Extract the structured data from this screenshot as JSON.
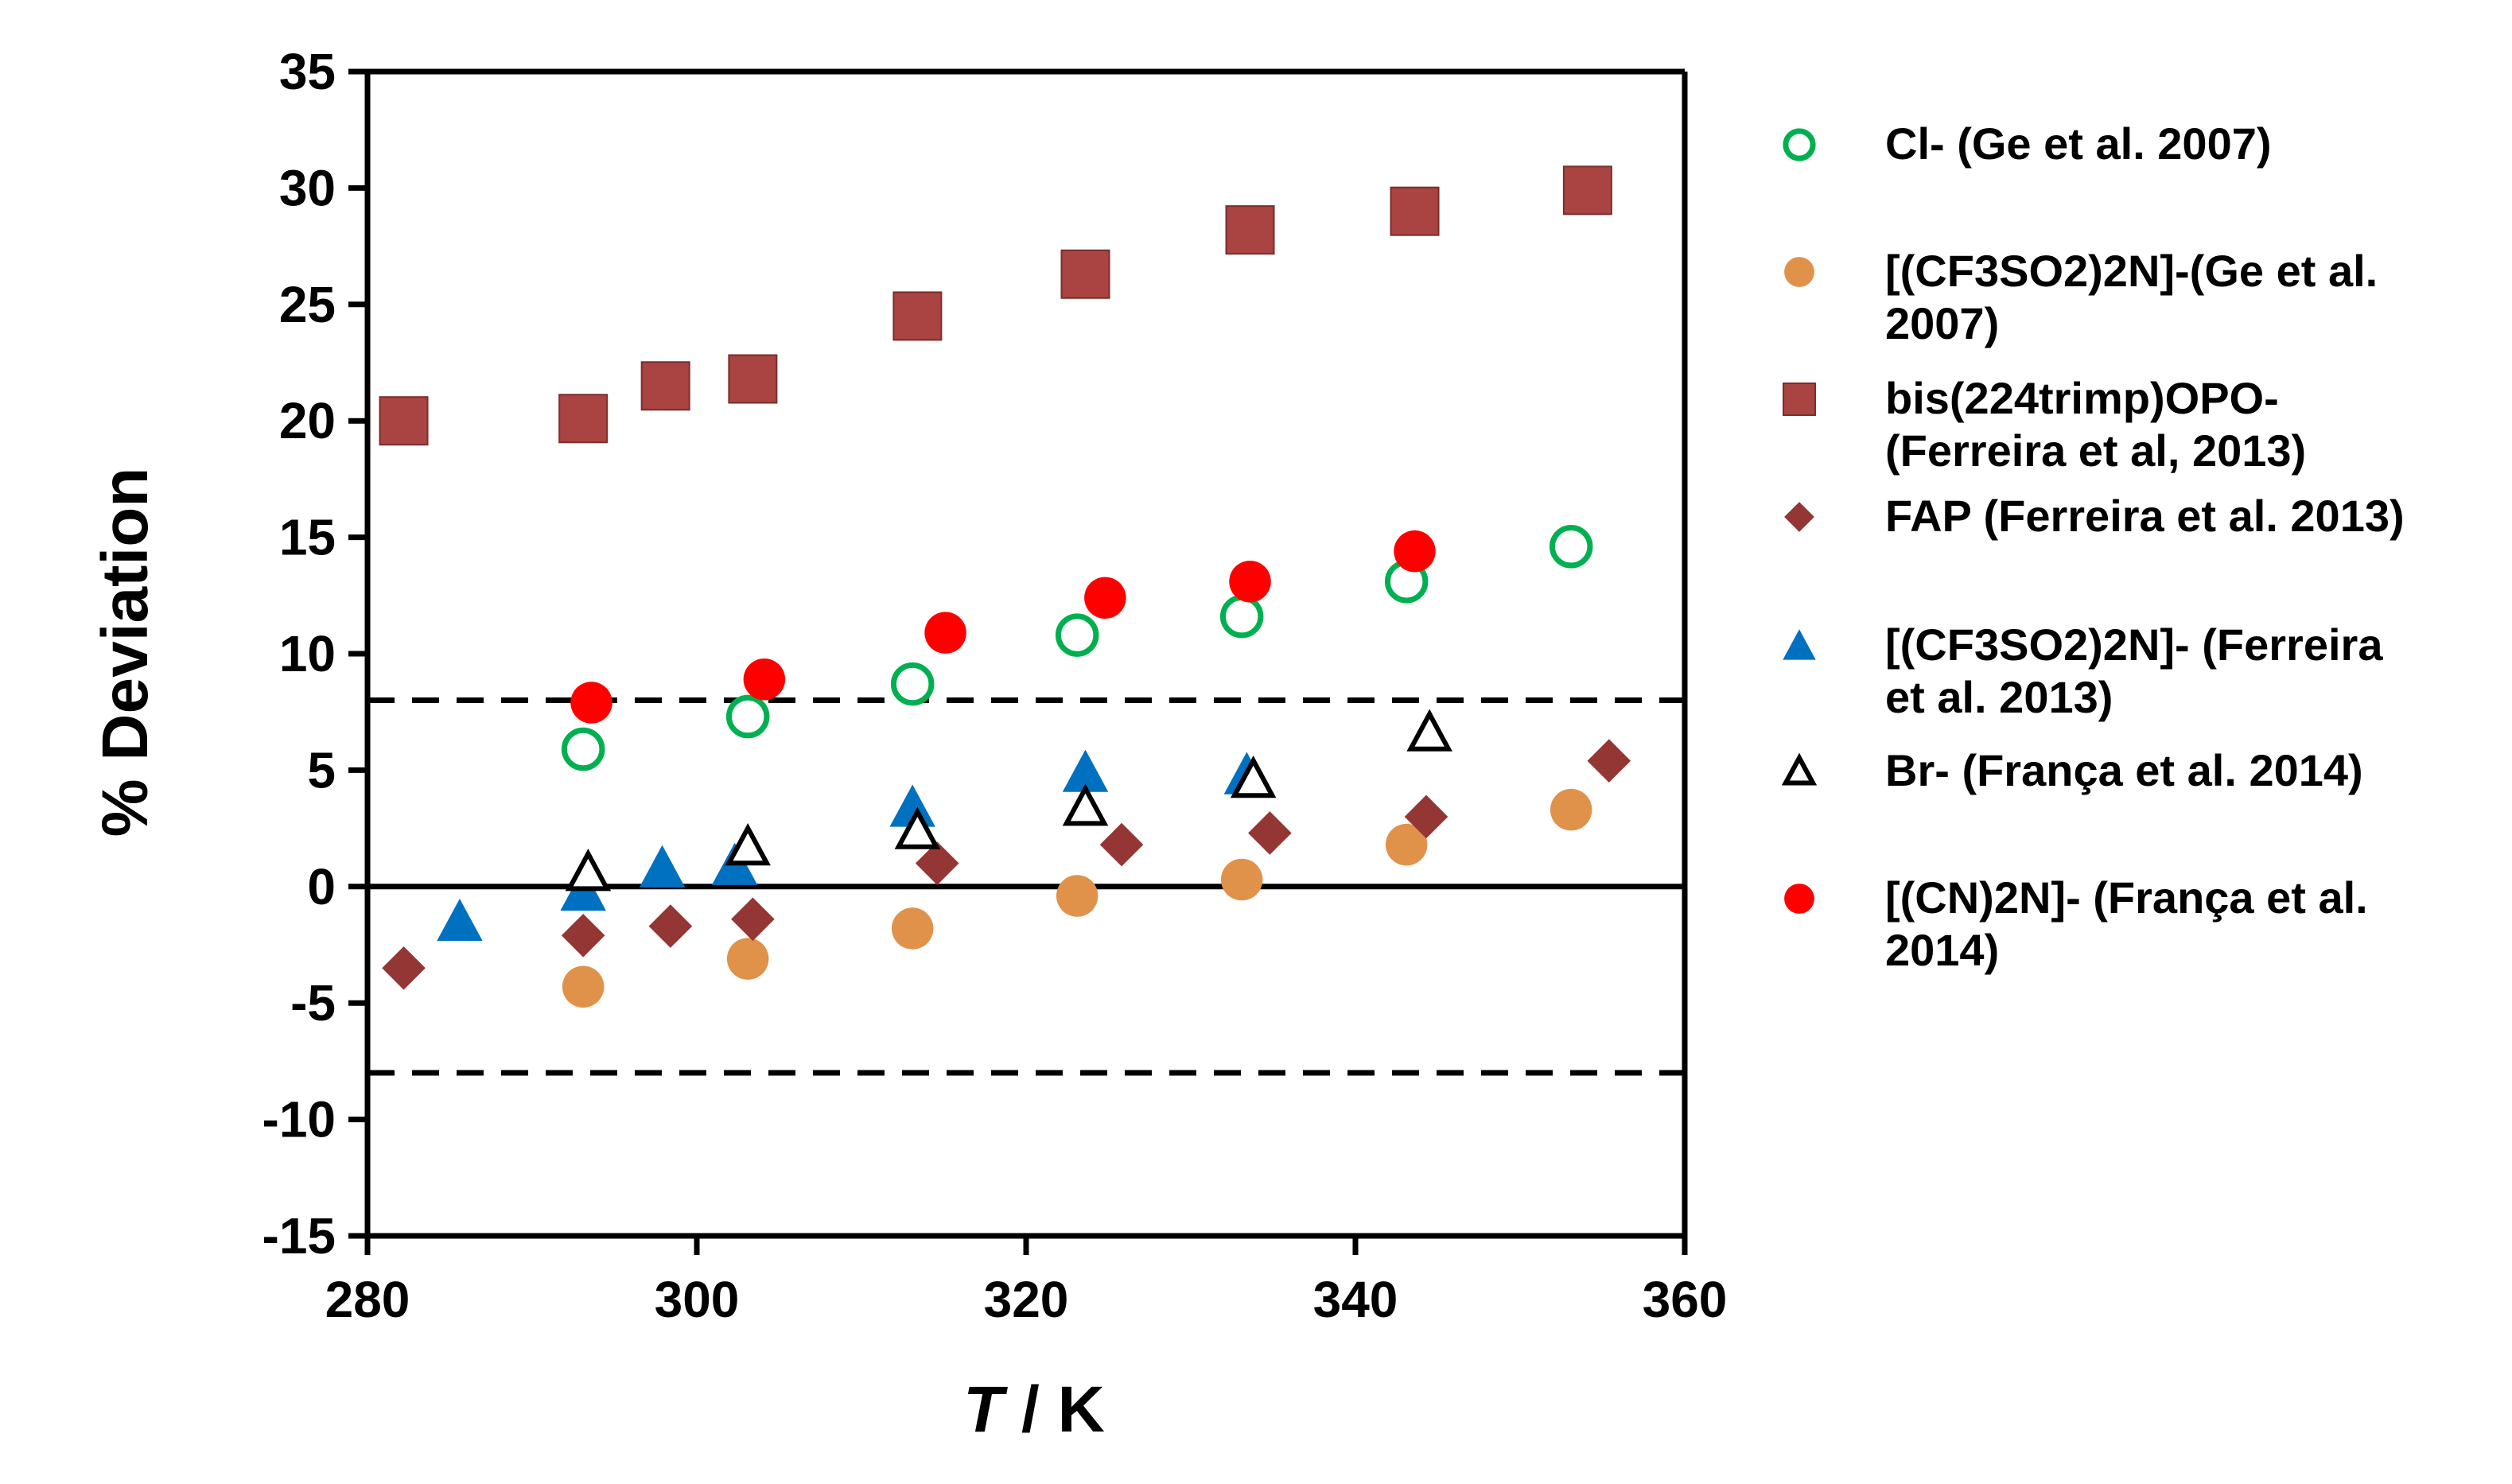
{
  "chart_data": {
    "type": "scatter",
    "title": "",
    "xlabel_italic": "T",
    "xlabel_rest": " / K",
    "ylabel": "% Deviation",
    "xlim": [
      280,
      360
    ],
    "ylim": [
      -15,
      35
    ],
    "x_ticks": [
      280,
      300,
      320,
      340,
      360
    ],
    "y_ticks": [
      35,
      30,
      25,
      20,
      15,
      10,
      5,
      0,
      -5,
      -10,
      -15
    ],
    "reference_lines": [
      {
        "y": 8,
        "style": "dashed"
      },
      {
        "y": -8,
        "style": "dashed"
      },
      {
        "y": 0,
        "style": "solid"
      }
    ],
    "legend_position": "right",
    "series": [
      {
        "name": "Cl- (Ge et al. 2007)",
        "legend_lines": [
          "Cl- (Ge et al. 2007)"
        ],
        "marker": "circle-open",
        "color": "#00B050",
        "points": [
          [
            293.1,
            5.9
          ],
          [
            303.1,
            7.3
          ],
          [
            313.1,
            8.7
          ],
          [
            323.1,
            10.8
          ],
          [
            333.1,
            11.6
          ],
          [
            343.1,
            13.1
          ],
          [
            353.1,
            14.6
          ]
        ]
      },
      {
        "name": "[(CF3SO2)2N]-(Ge et al. 2007)",
        "legend_lines": [
          "[(CF3SO2)2N]-(Ge et al.",
          "2007)"
        ],
        "marker": "circle-filled",
        "color": "#E0924A",
        "points": [
          [
            293.1,
            -4.3
          ],
          [
            303.1,
            -3.1
          ],
          [
            313.1,
            -1.8
          ],
          [
            323.1,
            -0.4
          ],
          [
            333.1,
            0.3
          ],
          [
            343.1,
            1.8
          ],
          [
            353.1,
            3.3
          ]
        ]
      },
      {
        "name": "bis(224trimp)OPO- (Ferreira et al, 2013)",
        "legend_lines": [
          "bis(224trimp)OPO-",
          "(Ferreira et al, 2013)"
        ],
        "marker": "square",
        "color": "#A94442",
        "points": [
          [
            282.2,
            20.0
          ],
          [
            293.1,
            20.1
          ],
          [
            298.1,
            21.5
          ],
          [
            303.4,
            21.8
          ],
          [
            313.4,
            24.5
          ],
          [
            323.6,
            26.3
          ],
          [
            333.6,
            28.2
          ],
          [
            343.6,
            29.0
          ],
          [
            354.1,
            29.9
          ]
        ]
      },
      {
        "name": "FAP (Ferreira et al. 2013)",
        "legend_lines": [
          "FAP (Ferreira et al. 2013)"
        ],
        "marker": "diamond",
        "color": "#943634",
        "points": [
          [
            282.2,
            -3.5
          ],
          [
            293.1,
            -2.1
          ],
          [
            298.4,
            -1.7
          ],
          [
            303.4,
            -1.4
          ],
          [
            314.6,
            1.0
          ],
          [
            325.8,
            1.8
          ],
          [
            334.8,
            2.3
          ],
          [
            344.3,
            3.0
          ],
          [
            355.4,
            5.4
          ]
        ]
      },
      {
        "name": "[(CF3SO2)2N]- (Ferreira et al. 2013)",
        "legend_lines": [
          "[(CF3SO2)2N]- (Ferreira",
          "et al. 2013)"
        ],
        "marker": "triangle-filled",
        "color": "#0070C0",
        "points": [
          [
            285.6,
            -1.5
          ],
          [
            293.1,
            -0.2
          ],
          [
            297.9,
            0.8
          ],
          [
            302.3,
            0.9
          ],
          [
            313.1,
            3.4
          ],
          [
            323.6,
            4.9
          ],
          [
            333.4,
            4.8
          ]
        ]
      },
      {
        "name": "Br- (França et al. 2014)",
        "legend_lines": [
          "Br- (França et al. 2014)"
        ],
        "marker": "triangle-open",
        "color": "#000000",
        "points": [
          [
            293.4,
            0.6
          ],
          [
            303.1,
            1.7
          ],
          [
            313.4,
            2.4
          ],
          [
            323.6,
            3.4
          ],
          [
            333.8,
            4.6
          ],
          [
            344.5,
            6.6
          ]
        ]
      },
      {
        "name": "[(CN)2N]- (França et al. 2014)",
        "legend_lines": [
          "[(CN)2N]- (França et al.",
          "2014)"
        ],
        "marker": "circle-filled",
        "color": "#FF0000",
        "points": [
          [
            293.6,
            7.9
          ],
          [
            304.1,
            8.9
          ],
          [
            315.1,
            10.9
          ],
          [
            324.8,
            12.4
          ],
          [
            333.6,
            13.1
          ],
          [
            343.6,
            14.4
          ]
        ]
      }
    ]
  }
}
